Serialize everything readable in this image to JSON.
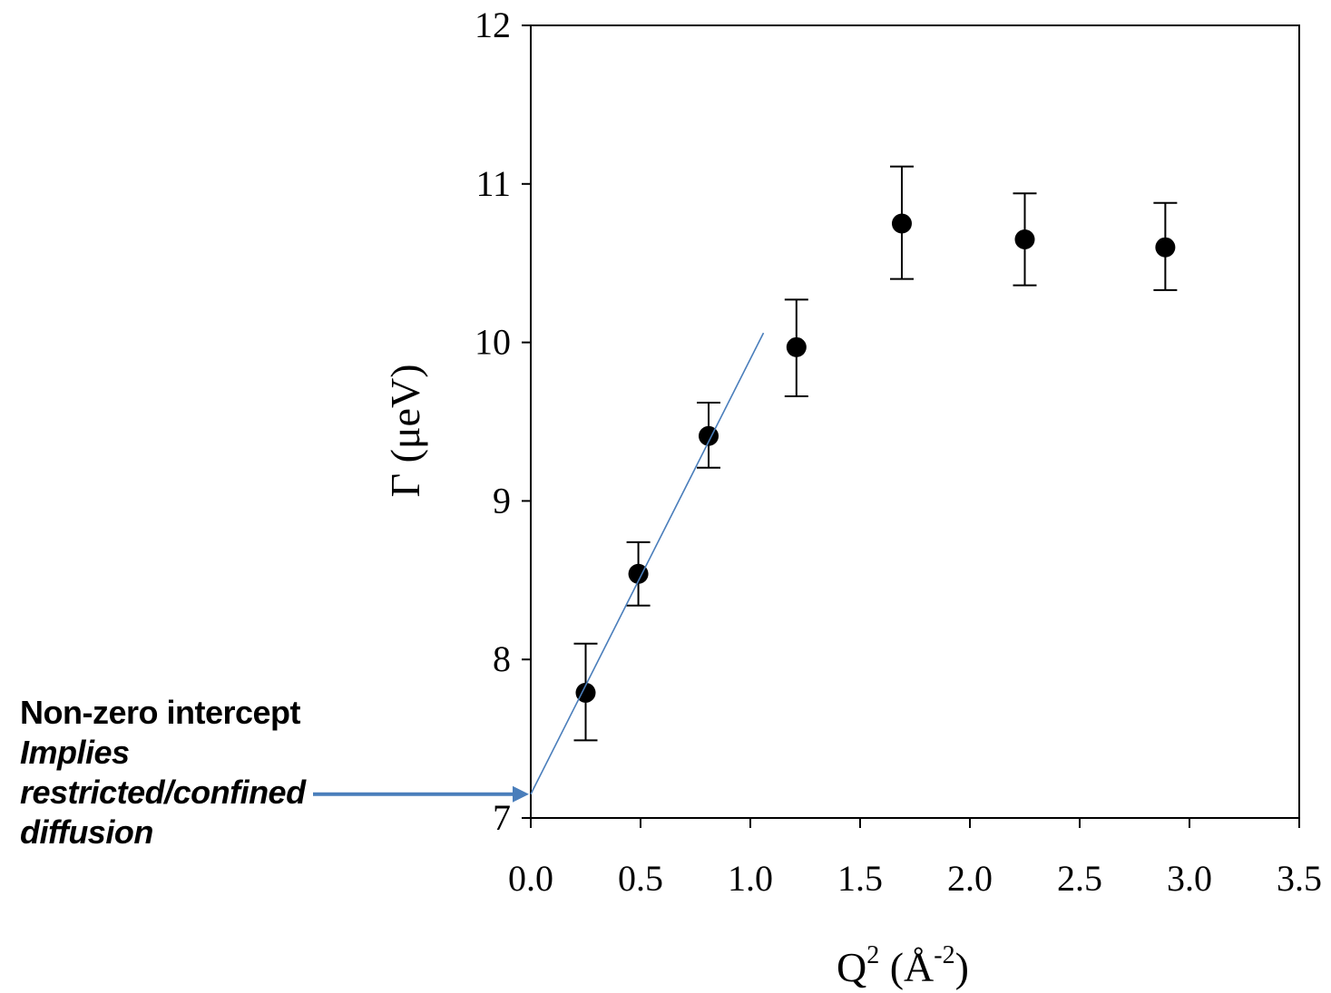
{
  "chart_data": {
    "type": "scatter",
    "xlabel": {
      "base": "Q",
      "sup": "2",
      "unit_open": " (Å",
      "unit_sup": "-2",
      "unit_close": ")"
    },
    "ylabel": "Γ (μeV)",
    "xlim": [
      0.0,
      3.5
    ],
    "ylim": [
      7,
      12
    ],
    "xticks": [
      "0.0",
      "0.5",
      "1.0",
      "1.5",
      "2.0",
      "2.5",
      "3.0",
      "3.5"
    ],
    "xtick_values": [
      0.0,
      0.5,
      1.0,
      1.5,
      2.0,
      2.5,
      3.0,
      3.5
    ],
    "yticks": [
      "7",
      "8",
      "9",
      "10",
      "11",
      "12"
    ],
    "ytick_values": [
      7,
      8,
      9,
      10,
      11,
      12
    ],
    "series": [
      {
        "x": [
          0.25,
          0.49,
          0.81,
          1.21,
          1.69,
          2.25,
          2.89
        ],
        "y": [
          7.79,
          8.54,
          9.41,
          9.97,
          10.75,
          10.65,
          10.6
        ],
        "yerr_low": [
          7.49,
          8.34,
          9.21,
          9.66,
          10.4,
          10.36,
          10.33
        ],
        "yerr_high": [
          8.1,
          8.74,
          9.62,
          10.27,
          11.11,
          10.94,
          10.88
        ],
        "color": "#000000"
      }
    ],
    "fit_line": {
      "x": [
        0.0,
        1.06
      ],
      "y": [
        7.15,
        10.06
      ],
      "color": "#4a7ebb"
    },
    "grid": false,
    "legend": "none"
  },
  "annotation": {
    "line1": "Non-zero intercept",
    "line2": "Implies",
    "line3": "restricted/confined",
    "line4": "diffusion",
    "arrow_color": "#4a7ebb"
  }
}
